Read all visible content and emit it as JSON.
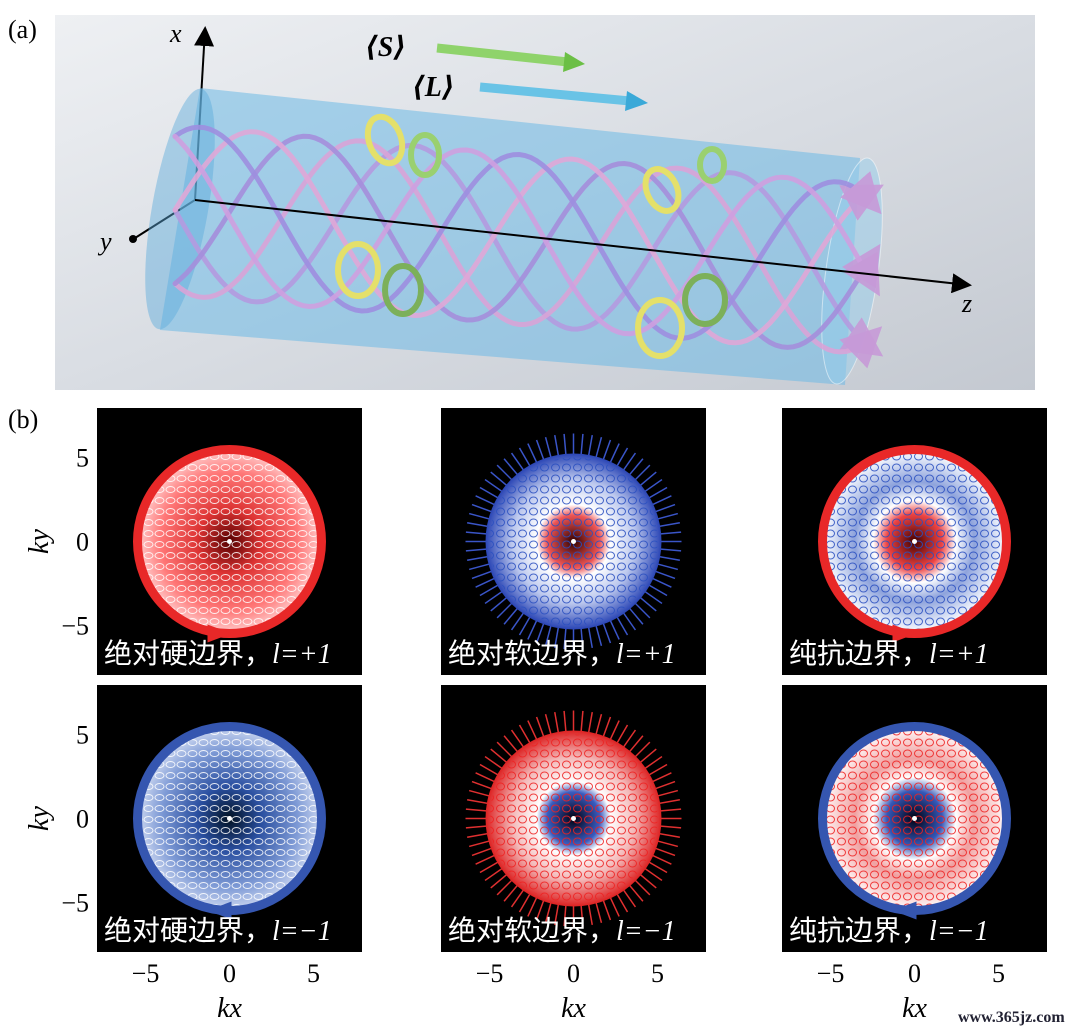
{
  "panel_a": {
    "label": "(a)",
    "axis_x": "x",
    "axis_y": "y",
    "axis_z": "z",
    "spin": "⟨S⟩",
    "orbital": "⟨L⟩"
  },
  "panel_b": {
    "label": "(b)",
    "x_label": "kx",
    "y_label": "ky",
    "ticks": [
      "−5",
      "0",
      "5"
    ],
    "plots": [
      {
        "name": "绝对硬边界，",
        "param": "l=+1"
      },
      {
        "name": "绝对软边界，",
        "param": "l=+1"
      },
      {
        "name": "纯抗边界，",
        "param": "l=+1"
      },
      {
        "name": "绝对硬边界，",
        "param": "l=−1"
      },
      {
        "name": "绝对软边界，",
        "param": "l=−1"
      },
      {
        "name": "纯抗边界，",
        "param": "l=−1"
      }
    ]
  },
  "watermark": "www.365jz.com"
}
